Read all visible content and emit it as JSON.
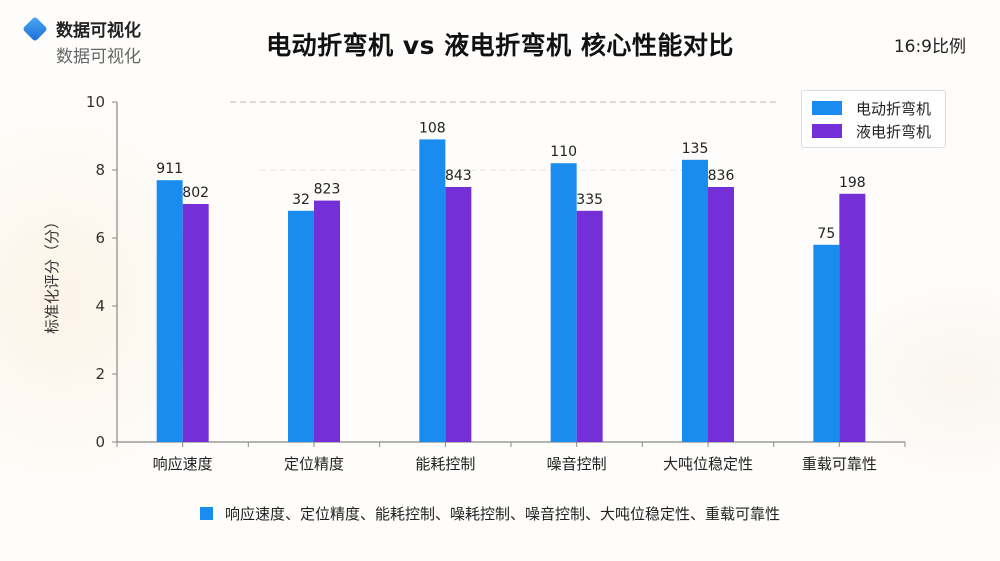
{
  "brand": {
    "icon": "diamond-logo-icon",
    "title": "数据可视化",
    "subtitle": "数据可视化"
  },
  "header": {
    "title": "电动折弯机 vs 液电折弯机 核心性能对比",
    "ratio_label": "16:9比例"
  },
  "colors": {
    "electric": "#1a8cf0",
    "hydraulic": "#7430d6",
    "axis": "#888888",
    "gridline": "#d0d0d0"
  },
  "legend": {
    "items": [
      {
        "label": "电动折弯机",
        "color": "#1a8cf0"
      },
      {
        "label": "液电折弯机",
        "color": "#7430d6"
      }
    ]
  },
  "footnote": {
    "swatch_color": "#1a8cf0",
    "text": "响应速度、定位精度、能耗控制、噪耗控制、噪音控制、大吨位稳定性、重载可靠性"
  },
  "chart_data": {
    "type": "bar",
    "title": "电动折弯机 vs 液电折弯机 核心性能对比",
    "xlabel": "",
    "ylabel": "标准化评分（分）",
    "ylim": [
      0,
      10
    ],
    "yticks": [
      0,
      2,
      4,
      6,
      8,
      10
    ],
    "grid": false,
    "legend_position": "top-right",
    "categories": [
      "响应速度",
      "定位精度",
      "能耗控制",
      "噪音控制",
      "大吨位稳定性",
      "重载可靠性"
    ],
    "series": [
      {
        "name": "电动折弯机",
        "color": "#1a8cf0",
        "values": [
          7.7,
          6.8,
          8.9,
          8.2,
          8.3,
          5.8
        ],
        "data_labels": [
          "911",
          "32",
          "108",
          "110",
          "135",
          "75"
        ]
      },
      {
        "name": "液电折弯机",
        "color": "#7430d6",
        "values": [
          7.0,
          7.1,
          7.5,
          6.8,
          7.5,
          7.3
        ],
        "data_labels": [
          "802",
          "823",
          "843",
          "335",
          "836",
          "198"
        ]
      }
    ]
  }
}
